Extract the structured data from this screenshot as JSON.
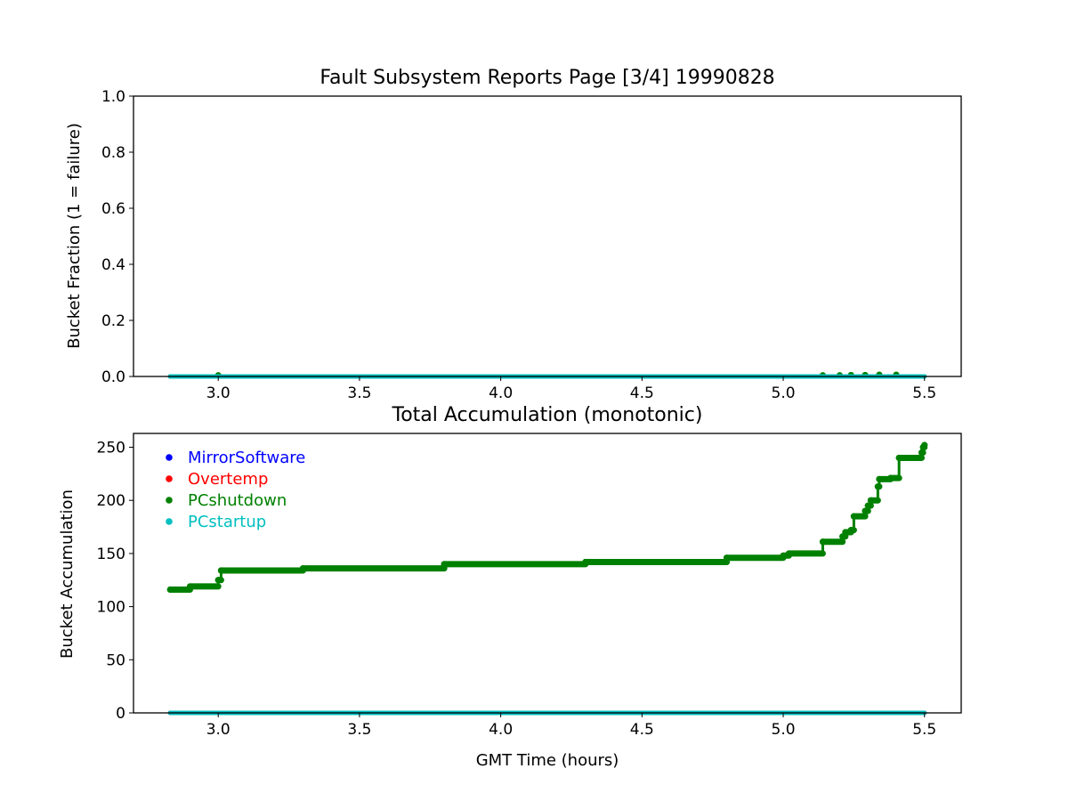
{
  "colors": {
    "MirrorSoftware": "#0000ff",
    "Overtemp": "#ff0000",
    "PCshutdown": "#008000",
    "PCstartup": "#00bfbf",
    "axes": "#000000",
    "background": "#ffffff"
  },
  "chart_data": [
    {
      "type": "scatter",
      "title": "Fault Subsystem Reports Page [3/4] 19990828",
      "xlabel": "",
      "ylabel": "Bucket Fraction (1 = failure)",
      "xlim": [
        2.7,
        5.63
      ],
      "ylim": [
        0,
        1.0
      ],
      "xticks": [
        "3.0",
        "3.5",
        "4.0",
        "4.5",
        "5.0",
        "5.5"
      ],
      "yticks": [
        "0.0",
        "0.2",
        "0.4",
        "0.6",
        "0.8",
        "1.0"
      ],
      "grid": false,
      "series": [
        {
          "name": "MirrorSoftware",
          "constant": 0,
          "x_range": [
            2.83,
            5.5
          ]
        },
        {
          "name": "Overtemp",
          "constant": 0,
          "x_range": [
            2.83,
            5.5
          ]
        },
        {
          "name": "PCshutdown",
          "points": [
            [
              3.0,
              0.004
            ],
            [
              5.14,
              0.004
            ],
            [
              5.2,
              0.004
            ],
            [
              5.24,
              0.005
            ],
            [
              5.29,
              0.005
            ],
            [
              5.34,
              0.006
            ],
            [
              5.4,
              0.006
            ]
          ],
          "baseline": 0,
          "x_range": [
            2.83,
            5.5
          ]
        },
        {
          "name": "PCstartup",
          "constant": 0,
          "x_range": [
            2.83,
            5.5
          ]
        }
      ]
    },
    {
      "type": "scatter",
      "title": "Total Accumulation (monotonic)",
      "xlabel": "GMT Time (hours)",
      "ylabel": "Bucket Accumulation",
      "xlim": [
        2.7,
        5.63
      ],
      "ylim": [
        0,
        263
      ],
      "xticks": [
        "3.0",
        "3.5",
        "4.0",
        "4.5",
        "5.0",
        "5.5"
      ],
      "yticks": [
        "0",
        "50",
        "100",
        "150",
        "200",
        "250"
      ],
      "grid": false,
      "legend_position": "top-left",
      "series": [
        {
          "name": "MirrorSoftware",
          "constant": 0,
          "x_range": [
            2.83,
            5.5
          ]
        },
        {
          "name": "Overtemp",
          "constant": 0,
          "x_range": [
            2.83,
            5.5
          ]
        },
        {
          "name": "PCshutdown",
          "steps": [
            [
              2.83,
              116
            ],
            [
              2.9,
              119
            ],
            [
              3.0,
              125
            ],
            [
              3.01,
              134
            ],
            [
              3.3,
              136
            ],
            [
              3.8,
              140
            ],
            [
              4.3,
              142
            ],
            [
              4.8,
              146
            ],
            [
              5.0,
              148
            ],
            [
              5.02,
              150
            ],
            [
              5.14,
              161
            ],
            [
              5.21,
              166
            ],
            [
              5.22,
              170
            ],
            [
              5.24,
              172
            ],
            [
              5.25,
              185
            ],
            [
              5.29,
              190
            ],
            [
              5.3,
              195
            ],
            [
              5.31,
              200
            ],
            [
              5.335,
              213
            ],
            [
              5.34,
              220
            ],
            [
              5.38,
              221
            ],
            [
              5.41,
              240
            ],
            [
              5.49,
              245
            ],
            [
              5.495,
              250
            ],
            [
              5.5,
              252
            ]
          ],
          "x_range": [
            2.83,
            5.5
          ]
        },
        {
          "name": "PCstartup",
          "constant": 0,
          "x_range": [
            2.83,
            5.5
          ]
        }
      ]
    }
  ]
}
